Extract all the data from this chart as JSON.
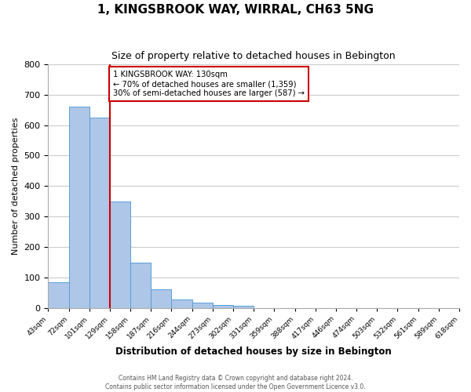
{
  "title": "1, KINGSBROOK WAY, WIRRAL, CH63 5NG",
  "subtitle": "Size of property relative to detached houses in Bebington",
  "xlabel": "Distribution of detached houses by size in Bebington",
  "ylabel": "Number of detached properties",
  "bar_values": [
    83,
    660,
    625,
    350,
    147,
    60,
    27,
    18,
    10,
    7,
    0,
    0,
    0,
    0,
    0,
    0,
    0,
    0,
    0,
    0
  ],
  "bar_labels": [
    "43sqm",
    "72sqm",
    "101sqm",
    "129sqm",
    "158sqm",
    "187sqm",
    "216sqm",
    "244sqm",
    "273sqm",
    "302sqm",
    "331sqm",
    "359sqm",
    "388sqm",
    "417sqm",
    "446sqm",
    "474sqm",
    "503sqm",
    "532sqm",
    "561sqm",
    "589sqm"
  ],
  "x_edge_label": "618sqm",
  "bar_color": "#aec6e8",
  "bar_edge_color": "#5a9fd4",
  "property_line_x": 3,
  "annotation_text": "1 KINGSBROOK WAY: 130sqm\n← 70% of detached houses are smaller (1,359)\n30% of semi-detached houses are larger (587) →",
  "annotation_box_color": "#ffffff",
  "annotation_box_edge_color": "#cc0000",
  "property_line_color": "#cc0000",
  "ylim": [
    0,
    800
  ],
  "yticks": [
    0,
    100,
    200,
    300,
    400,
    500,
    600,
    700,
    800
  ],
  "footer_line1": "Contains HM Land Registry data © Crown copyright and database right 2024.",
  "footer_line2": "Contains public sector information licensed under the Open Government Licence v3.0.",
  "background_color": "#ffffff",
  "grid_color": "#cccccc"
}
